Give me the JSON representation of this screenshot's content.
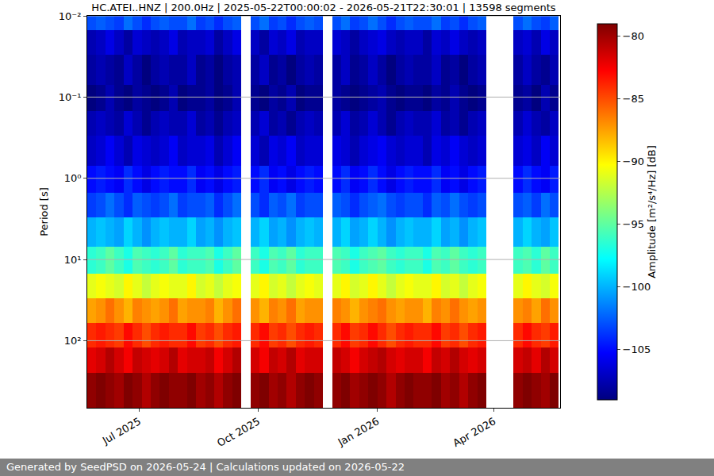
{
  "chart_data": {
    "type": "heatmap",
    "title": "HC.ATEI..HNZ | 200.0Hz | 2025-05-22T00:00:02 - 2026-05-21T22:30:01 | 13598 segments",
    "y_label": "Period [s]",
    "color_label": "Amplitude [m²/s⁴/Hz] [dB]",
    "color": "jet",
    "log": "y",
    "grid": true,
    "xlim": [
      "2025-05-22",
      "2026-05-22"
    ],
    "xticks": [
      {
        "value": "2025-07-01",
        "label": "Jul 2025"
      },
      {
        "value": "2025-10-01",
        "label": "Oct 2025"
      },
      {
        "value": "2026-01-01",
        "label": "Jan 2026"
      },
      {
        "value": "2026-04-01",
        "label": "Apr 2026"
      }
    ],
    "ylim": [
      670,
      0.01
    ],
    "yticks": [
      {
        "value": 0.01,
        "label": "10⁻²"
      },
      {
        "value": 0.1,
        "label": "10⁻¹"
      },
      {
        "value": 1,
        "label": "10⁰"
      },
      {
        "value": 10,
        "label": "10¹"
      },
      {
        "value": 100,
        "label": "10²"
      }
    ],
    "clim": [
      -109,
      -79
    ],
    "cticks": [
      -80,
      -85,
      -90,
      -95,
      -100,
      -105
    ],
    "x_edges": [
      "2025-05-22",
      "2025-05-29",
      "2025-06-05",
      "2025-06-12",
      "2025-06-19",
      "2025-06-26",
      "2025-07-03",
      "2025-07-10",
      "2025-07-17",
      "2025-07-24",
      "2025-07-31",
      "2025-08-07",
      "2025-08-14",
      "2025-08-21",
      "2025-08-28",
      "2025-09-04",
      "2025-09-11",
      "2025-09-18",
      "2025-09-25",
      "2025-10-02",
      "2025-10-09",
      "2025-10-16",
      "2025-10-23",
      "2025-10-30",
      "2025-11-06",
      "2025-11-13",
      "2025-11-20",
      "2025-11-27",
      "2025-12-04",
      "2025-12-11",
      "2025-12-18",
      "2025-12-25",
      "2026-01-01",
      "2026-01-08",
      "2026-01-15",
      "2026-01-22",
      "2026-01-29",
      "2026-02-05",
      "2026-02-12",
      "2026-02-19",
      "2026-02-26",
      "2026-03-05",
      "2026-03-12",
      "2026-03-19",
      "2026-03-26",
      "2026-04-02",
      "2026-04-09",
      "2026-04-16",
      "2026-04-23",
      "2026-04-30",
      "2026-05-07",
      "2026-05-14",
      "2026-05-21"
    ],
    "y_edges": [
      0.01,
      0.015,
      0.03,
      0.07,
      0.15,
      0.3,
      0.7,
      1.5,
      3,
      7,
      15,
      30,
      60,
      120,
      250,
      670
    ],
    "cells": [
      [
        -103,
        -102.5,
        -103,
        -103.5,
        -102,
        -103,
        -104,
        -103,
        -102.5,
        -103,
        -103,
        -102,
        -103.5,
        -103,
        -104,
        -103,
        -102.5,
        null,
        -103,
        -102,
        -103.5,
        -103,
        -104,
        -103,
        -102.5,
        -103,
        null,
        -103,
        -102,
        -103.5,
        -103,
        -102,
        -103,
        -104,
        -103,
        -102.5,
        -103,
        -103,
        -102,
        -103.5,
        -103,
        -104,
        -103,
        -102.5,
        null,
        null,
        null,
        -103,
        -102,
        -103,
        -103.5,
        -102.5
      ],
      [
        -107.5,
        -107,
        -106,
        -107,
        -108,
        -106.5,
        -107,
        -107.5,
        -107,
        -106,
        -107.5,
        -107,
        -107,
        -106.5,
        -108,
        -107,
        -106,
        null,
        -107,
        -108,
        -106.5,
        -107,
        -106,
        -107.5,
        -107,
        -107,
        null,
        -106.5,
        -107,
        -108,
        -107,
        -106.5,
        -106,
        -107,
        -107.5,
        -107,
        -107,
        -108,
        -106.5,
        -107,
        -106,
        -107,
        -107.5,
        -107,
        null,
        null,
        null,
        -107,
        -106.5,
        -107.5,
        -106,
        -107
      ],
      [
        -108,
        -107.5,
        -108,
        -108.5,
        -107,
        -108,
        -109,
        -108,
        -107.5,
        -108,
        -108,
        -107,
        -108.5,
        -108,
        -109,
        -108,
        -107.5,
        null,
        -108,
        -107,
        -108.5,
        -108,
        -109,
        -108,
        -107.5,
        -108,
        null,
        -108,
        -107,
        -108.5,
        -108,
        -107,
        -108,
        -109,
        -108,
        -107.5,
        -108,
        -108,
        -107,
        -108.5,
        -108,
        -109,
        -108,
        -107.5,
        null,
        null,
        null,
        -108,
        -107,
        -108,
        -108.5,
        -107.5
      ],
      [
        -109,
        -108.5,
        -107.5,
        -108.5,
        -109.5,
        -108,
        -108.5,
        -109,
        -108.5,
        -107.5,
        -109,
        -108.5,
        -108.5,
        -108,
        -109.5,
        -108.5,
        -107.5,
        null,
        -108.5,
        -109.5,
        -108,
        -108.5,
        -107.5,
        -109,
        -108.5,
        -108.5,
        null,
        -108,
        -108.5,
        -109.5,
        -108.5,
        -108,
        -107.5,
        -108.5,
        -109,
        -108.5,
        -108.5,
        -109.5,
        -108,
        -108.5,
        -107.5,
        -108.5,
        -109,
        -108.5,
        null,
        null,
        null,
        -108.5,
        -108,
        -109,
        -107.5,
        -108.5
      ],
      [
        -107.5,
        -107,
        -107.5,
        -108,
        -106.5,
        -107.5,
        -108.5,
        -107.5,
        -107,
        -107.5,
        -107.5,
        -106.5,
        -108,
        -107.5,
        -108.5,
        -107.5,
        -107,
        null,
        -107.5,
        -106.5,
        -108,
        -107.5,
        -108.5,
        -107.5,
        -107,
        -107.5,
        null,
        -107.5,
        -106.5,
        -108,
        -107.5,
        -106.5,
        -107.5,
        -108.5,
        -107.5,
        -107,
        -107.5,
        -107.5,
        -106.5,
        -108,
        -107.5,
        -108.5,
        -107.5,
        -107,
        null,
        null,
        null,
        -107.5,
        -106.5,
        -107.5,
        -108,
        -107
      ],
      [
        -107,
        -106.5,
        -105.5,
        -106.5,
        -107.5,
        -106,
        -106.5,
        -107,
        -106.5,
        -105.5,
        -107,
        -106.5,
        -106.5,
        -106,
        -107.5,
        -106.5,
        -105.5,
        null,
        -106.5,
        -107.5,
        -106,
        -106.5,
        -105.5,
        -107,
        -106.5,
        -106.5,
        null,
        -106,
        -106.5,
        -107.5,
        -106.5,
        -106,
        -105.5,
        -106.5,
        -107,
        -106.5,
        -106.5,
        -107.5,
        -106,
        -106.5,
        -105.5,
        -106.5,
        -107,
        -106.5,
        null,
        null,
        null,
        -106.5,
        -106,
        -107,
        -105.5,
        -106.5
      ],
      [
        -105,
        -104.5,
        -105,
        -105.5,
        -104,
        -105,
        -106,
        -105,
        -104.5,
        -105,
        -105,
        -104,
        -105.5,
        -105,
        -106,
        -105,
        -104.5,
        null,
        -105,
        -104,
        -105.5,
        -105,
        -106,
        -105,
        -104.5,
        -105,
        null,
        -105,
        -104,
        -105.5,
        -105,
        -104,
        -105,
        -106,
        -105,
        -104.5,
        -105,
        -105,
        -104,
        -105.5,
        -105,
        -106,
        -105,
        -104.5,
        null,
        null,
        null,
        -105,
        -104,
        -105,
        -105.5,
        -104.5
      ],
      [
        -103.5,
        -103,
        -102,
        -103,
        -104,
        -102.5,
        -103,
        -103.5,
        -103,
        -102,
        -103.5,
        -103,
        -103,
        -102.5,
        -104,
        -103,
        -102,
        null,
        -103,
        -104,
        -102.5,
        -103,
        -102,
        -103.5,
        -103,
        -103,
        null,
        -102.5,
        -103,
        -104,
        -103,
        -102.5,
        -102,
        -103,
        -103.5,
        -103,
        -103,
        -104,
        -102.5,
        -103,
        -102,
        -103,
        -103.5,
        -103,
        null,
        null,
        null,
        -103,
        -102.5,
        -103.5,
        -102,
        -103
      ],
      [
        -100,
        -99.5,
        -100,
        -100.5,
        -99,
        -100,
        -101,
        -100,
        -99.5,
        -100,
        -100,
        -99,
        -100.5,
        -100,
        -101,
        -100,
        -99.5,
        null,
        -100,
        -99,
        -100.5,
        -100,
        -101,
        -100,
        -99.5,
        -100,
        null,
        -100,
        -99,
        -100.5,
        -100,
        -99,
        -100,
        -101,
        -100,
        -99.5,
        -100,
        -100,
        -99,
        -100.5,
        -100,
        -101,
        -100,
        -99.5,
        null,
        null,
        null,
        -100,
        -99,
        -100,
        -100.5,
        -99.5
      ],
      [
        -96.5,
        -96,
        -95,
        -96,
        -97,
        -95.5,
        -96,
        -96.5,
        -96,
        -95,
        -96.5,
        -96,
        -96,
        -95.5,
        -97,
        -96,
        -95,
        null,
        -96,
        -97,
        -95.5,
        -96,
        -95,
        -96.5,
        -96,
        -96,
        null,
        -95.5,
        -96,
        -97,
        -96,
        -95.5,
        -95,
        -96,
        -96.5,
        -96,
        -96,
        -97,
        -95.5,
        -96,
        -95,
        -96,
        -96.5,
        -96,
        null,
        null,
        null,
        -96,
        -95.5,
        -96.5,
        -95,
        -96
      ],
      [
        -91,
        -90.5,
        -91,
        -91.5,
        -90,
        -91,
        -92,
        -91,
        -90.5,
        -91,
        -91,
        -90,
        -91.5,
        -91,
        -92,
        -91,
        -90.5,
        null,
        -91,
        -90,
        -91.5,
        -91,
        -92,
        -91,
        -90.5,
        -91,
        null,
        -91,
        -90,
        -91.5,
        -91,
        -90,
        -91,
        -92,
        -91,
        -90.5,
        -91,
        -91,
        -90,
        -91.5,
        -91,
        -92,
        -91,
        -90.5,
        null,
        null,
        null,
        -91,
        -90,
        -91,
        -91.5,
        -90.5
      ],
      [
        -87.5,
        -87,
        -86,
        -87,
        -88,
        -86.5,
        -87,
        -87.5,
        -87,
        -86,
        -87.5,
        -87,
        -87,
        -86.5,
        -88,
        -87,
        -86,
        null,
        -87,
        -88,
        -86.5,
        -87,
        -86,
        -87.5,
        -87,
        -87,
        null,
        -86.5,
        -87,
        -88,
        -87,
        -86.5,
        -86,
        -87,
        -87.5,
        -87,
        -87,
        -88,
        -86.5,
        -87,
        -86,
        -87,
        -87.5,
        -87,
        null,
        null,
        null,
        -87,
        -86.5,
        -87.5,
        -86,
        -87
      ],
      [
        -84,
        -83.5,
        -84,
        -84.5,
        -83,
        -84,
        -85,
        -84,
        -83.5,
        -84,
        -84,
        -83,
        -84.5,
        -84,
        -85,
        -84,
        -83.5,
        null,
        -84,
        -83,
        -84.5,
        -84,
        -85,
        -84,
        -83.5,
        -84,
        null,
        -84,
        -83,
        -84.5,
        -84,
        -83,
        -84,
        -85,
        -84,
        -83.5,
        -84,
        -84,
        -83,
        -84.5,
        -84,
        -85,
        -84,
        -83.5,
        null,
        null,
        null,
        -84,
        -83,
        -84,
        -84.5,
        -83.5
      ],
      [
        -82,
        -81.5,
        -80.5,
        -81.5,
        -82.5,
        -81,
        -81.5,
        -82,
        -81.5,
        -80.5,
        -82,
        -81.5,
        -81.5,
        -81,
        -82.5,
        -81.5,
        -80.5,
        null,
        -81.5,
        -82.5,
        -81,
        -81.5,
        -80.5,
        -82,
        -81.5,
        -81.5,
        null,
        -81,
        -81.5,
        -82.5,
        -81.5,
        -81,
        -80.5,
        -81.5,
        -82,
        -81.5,
        -81.5,
        -82.5,
        -81,
        -81.5,
        -80.5,
        -81.5,
        -82,
        -81.5,
        null,
        null,
        null,
        -81.5,
        -81,
        -82,
        -80.5,
        -81.5
      ],
      [
        -79.5,
        -79,
        -79.5,
        -80,
        -78.5,
        -79.5,
        -80.5,
        -79.5,
        -79,
        -79.5,
        -79.5,
        -78.5,
        -80,
        -79.5,
        -80.5,
        -79.5,
        -79,
        null,
        -79.5,
        -78.5,
        -80,
        -79.5,
        -80.5,
        -79.5,
        -79,
        -79.5,
        null,
        -79.5,
        -78.5,
        -80,
        -79.5,
        -78.5,
        -79.5,
        -80.5,
        -79.5,
        -79,
        -79.5,
        -79.5,
        -78.5,
        -80,
        -79.5,
        -80.5,
        -79.5,
        -79,
        null,
        null,
        null,
        -79.5,
        -78.5,
        -79.5,
        -80,
        -79
      ]
    ]
  },
  "footer": "Generated by SeedPSD on 2026-05-24 | Calculations updated on 2026-05-22"
}
